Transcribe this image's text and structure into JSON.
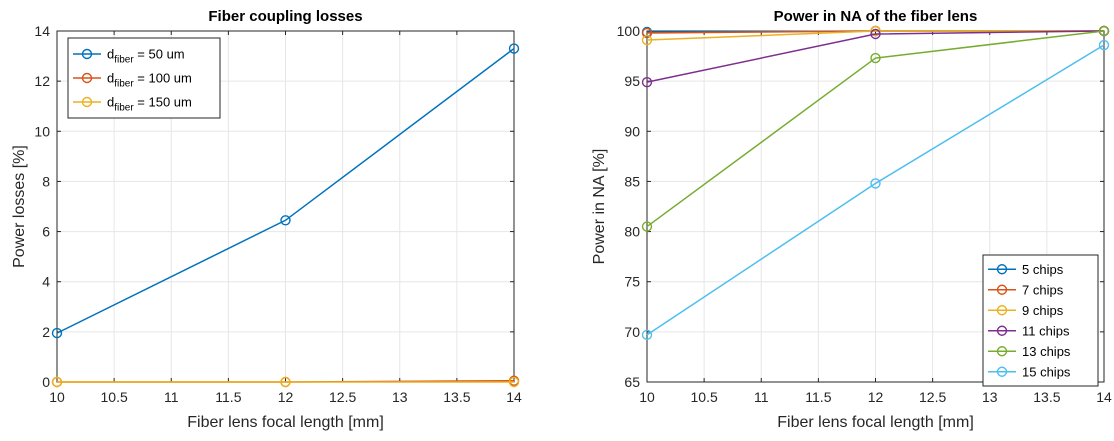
{
  "chart_data": [
    {
      "type": "line",
      "title": "Fiber coupling losses",
      "xlabel": "Fiber lens focal length [mm]",
      "ylabel": "Power losses [%]",
      "xlim": [
        10,
        14
      ],
      "ylim": [
        0,
        14
      ],
      "xticks": [
        "10",
        "10.5",
        "11",
        "11.5",
        "12",
        "12.5",
        "13",
        "13.5",
        "14"
      ],
      "yticks": [
        "0",
        "2",
        "4",
        "6",
        "8",
        "10",
        "12",
        "14"
      ],
      "x": [
        10,
        12,
        14
      ],
      "grid": true,
      "legend_position": "top-left",
      "series": [
        {
          "name_main": "d",
          "name_sub": "fiber",
          "name_rest": " = 50 um",
          "values": [
            1.95,
            6.45,
            13.3
          ],
          "color": "#0072BD"
        },
        {
          "name_main": "d",
          "name_sub": "fiber",
          "name_rest": " = 100 um",
          "values": [
            0.0,
            0.0,
            0.05
          ],
          "color": "#D95319"
        },
        {
          "name_main": "d",
          "name_sub": "fiber",
          "name_rest": " = 150 um",
          "values": [
            0.0,
            0.0,
            0.0
          ],
          "color": "#EDB120"
        }
      ]
    },
    {
      "type": "line",
      "title": "Power in NA of the fiber lens",
      "xlabel": "Fiber lens focal length [mm]",
      "ylabel": "Power in NA [%]",
      "xlim": [
        10,
        14
      ],
      "ylim": [
        65,
        100
      ],
      "xticks": [
        "10",
        "10.5",
        "11",
        "11.5",
        "12",
        "12.5",
        "13",
        "13.5",
        "14"
      ],
      "yticks": [
        "65",
        "70",
        "75",
        "80",
        "85",
        "90",
        "95",
        "100"
      ],
      "x": [
        10,
        12,
        14
      ],
      "grid": true,
      "legend_position": "bottom-right",
      "series": [
        {
          "name": "5 chips",
          "values": [
            99.9,
            100.0,
            100.0
          ],
          "color": "#0072BD"
        },
        {
          "name": "7 chips",
          "values": [
            99.8,
            100.0,
            100.0
          ],
          "color": "#D95319"
        },
        {
          "name": "9 chips",
          "values": [
            99.1,
            100.0,
            100.0
          ],
          "color": "#EDB120"
        },
        {
          "name": "11 chips",
          "values": [
            94.9,
            99.7,
            100.0
          ],
          "color": "#7E2F8E"
        },
        {
          "name": "13 chips",
          "values": [
            80.5,
            97.3,
            100.0
          ],
          "color": "#77AC30"
        },
        {
          "name": "15 chips",
          "values": [
            69.7,
            84.8,
            98.6
          ],
          "color": "#4DBEEE"
        }
      ]
    }
  ]
}
